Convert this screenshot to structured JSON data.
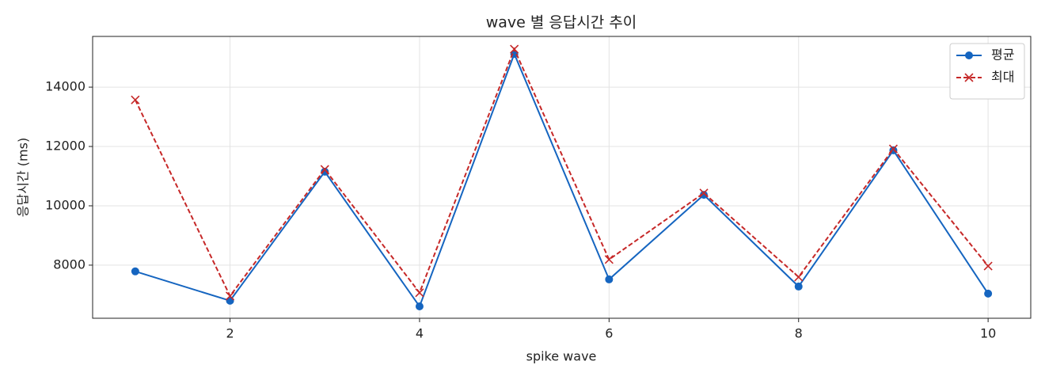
{
  "chart_data": {
    "type": "line",
    "title": "wave 별 응답시간 추이",
    "x_label": "spike wave",
    "y_label": "응답시간 (ms)",
    "x": [
      1,
      2,
      3,
      4,
      5,
      6,
      7,
      8,
      9,
      10
    ],
    "series": [
      {
        "name": "평균",
        "color": "#1565c0",
        "marker": "o",
        "linestyle": "solid",
        "values": [
          7790,
          6800,
          11150,
          6610,
          15120,
          7520,
          10370,
          7280,
          11870,
          7040
        ]
      },
      {
        "name": "최대",
        "color": "#c62828",
        "marker": "x",
        "linestyle": "dashed",
        "values": [
          13570,
          6960,
          11230,
          7070,
          15280,
          8190,
          10430,
          7600,
          11920,
          7970
        ]
      }
    ],
    "xlim": [
      0.55,
      10.45
    ],
    "xticks": [
      2,
      4,
      6,
      8,
      10
    ],
    "ylim": [
      6210,
      15710
    ],
    "yticks": [
      8000,
      10000,
      12000,
      14000
    ],
    "grid": true,
    "legend": "upper right"
  }
}
